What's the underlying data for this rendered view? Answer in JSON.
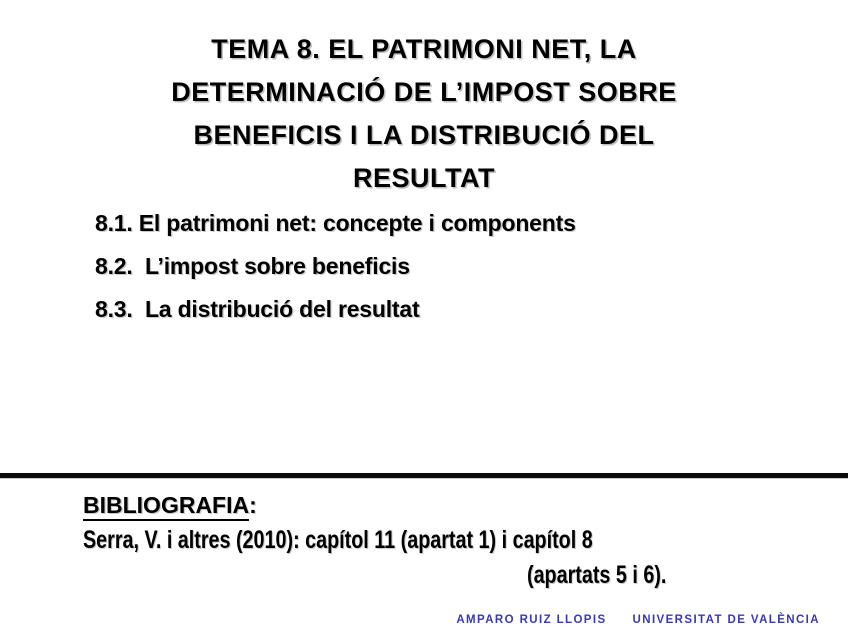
{
  "title": {
    "lines": [
      "TEMA 8. EL PATRIMONI NET, LA",
      "DETERMINACIÓ DE L’IMPOST SOBRE",
      "BENEFICIS I LA DISTRIBUCIÓ DEL",
      "RESULTAT"
    ]
  },
  "toc": {
    "items": [
      "8.1. El patrimoni net: concepte i components",
      "8.2.  L’impost sobre beneficis",
      "8.3.  La distribució del resultat"
    ]
  },
  "bibliography": {
    "heading": "BIBLIOGRAFIA",
    "colon": ":",
    "reference_line1": "Serra, V. i altres (2010): capítol 11 (apartat 1) i capítol 8",
    "reference_line2": "(apartats 5 i 6)."
  },
  "footer": {
    "author": "AMPARO RUIZ LLOPIS",
    "institution": "UNIVERSITAT DE VALÈNCIA"
  },
  "colors": {
    "text": "#000000",
    "footer_blue": "#3B3BA8",
    "background": "#FFFFFF",
    "divider": "#0A0A0A"
  }
}
